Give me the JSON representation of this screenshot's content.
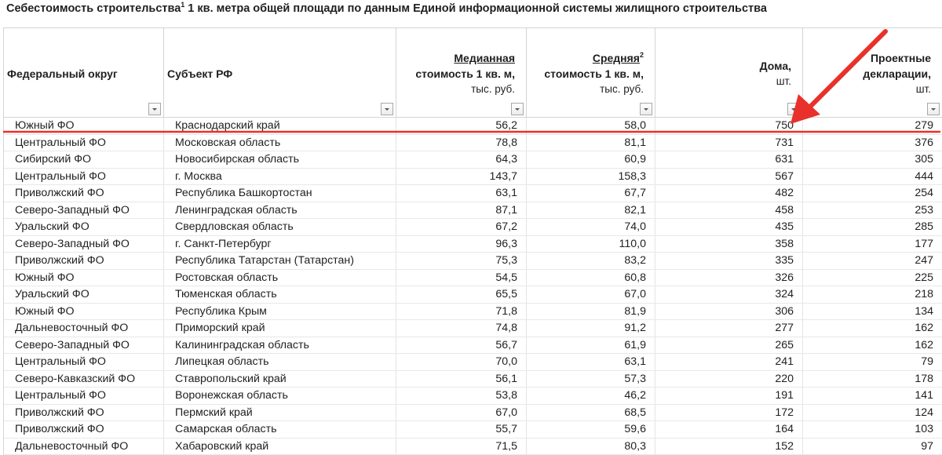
{
  "title": {
    "part1": "Себестоимость строительства",
    "sup": "1",
    "part2": " 1 кв. метра общей площади по данным Единой информационной системы жилищного строительства"
  },
  "columns": {
    "district": "Федеральный округ",
    "subject": "Субъект РФ",
    "median": {
      "line1": "Медианная",
      "line2": "стоимость 1 кв. м,",
      "line3": "тыс. руб."
    },
    "average": {
      "line1": "Средняя",
      "sup": "2",
      "line2": "стоимость 1 кв. м,",
      "line3": "тыс. руб."
    },
    "houses": {
      "line1": "Дома,",
      "line2": "шт."
    },
    "declarations": {
      "line1": "Проектные",
      "line2": "декларации,",
      "line3": "шт."
    }
  },
  "rows": [
    [
      "Южный ФО",
      "Краснодарский край",
      "56,2",
      "58,0",
      "750",
      "279"
    ],
    [
      "Центральный ФО",
      "Московская область",
      "78,8",
      "81,1",
      "731",
      "376"
    ],
    [
      "Сибирский ФО",
      "Новосибирская область",
      "64,3",
      "60,9",
      "631",
      "305"
    ],
    [
      "Центральный ФО",
      "г. Москва",
      "143,7",
      "158,3",
      "567",
      "444"
    ],
    [
      "Приволжский ФО",
      "Республика Башкортостан",
      "63,1",
      "67,7",
      "482",
      "254"
    ],
    [
      "Северо-Западный ФО",
      "Ленинградская область",
      "87,1",
      "82,1",
      "458",
      "253"
    ],
    [
      "Уральский ФО",
      "Свердловская область",
      "67,2",
      "74,0",
      "435",
      "285"
    ],
    [
      "Северо-Западный ФО",
      "г. Санкт-Петербург",
      "96,3",
      "110,0",
      "358",
      "177"
    ],
    [
      "Приволжский ФО",
      "Республика Татарстан (Татарстан)",
      "75,3",
      "83,2",
      "335",
      "247"
    ],
    [
      "Южный ФО",
      "Ростовская область",
      "54,5",
      "60,8",
      "326",
      "225"
    ],
    [
      "Уральский ФО",
      "Тюменская область",
      "65,5",
      "67,0",
      "324",
      "218"
    ],
    [
      "Южный ФО",
      "Республика Крым",
      "71,8",
      "81,9",
      "306",
      "134"
    ],
    [
      "Дальневосточный ФО",
      "Приморский край",
      "74,8",
      "91,2",
      "277",
      "162"
    ],
    [
      "Северо-Западный ФО",
      "Калининградская область",
      "56,7",
      "61,9",
      "265",
      "162"
    ],
    [
      "Центральный ФО",
      "Липецкая область",
      "70,0",
      "63,1",
      "241",
      "79"
    ],
    [
      "Северо-Кавказский ФО",
      "Ставропольский край",
      "56,1",
      "57,3",
      "220",
      "178"
    ],
    [
      "Центральный ФО",
      "Воронежская область",
      "53,8",
      "46,2",
      "191",
      "141"
    ],
    [
      "Приволжский ФО",
      "Пермский край",
      "67,0",
      "68,5",
      "172",
      "124"
    ],
    [
      "Приволжский ФО",
      "Самарская область",
      "55,7",
      "59,6",
      "164",
      "103"
    ],
    [
      "Дальневосточный ФО",
      "Хабаровский край",
      "71,5",
      "80,3",
      "152",
      "97"
    ]
  ],
  "annotation": {
    "color": "#e8312a",
    "icon": "red-arrow-icon"
  }
}
